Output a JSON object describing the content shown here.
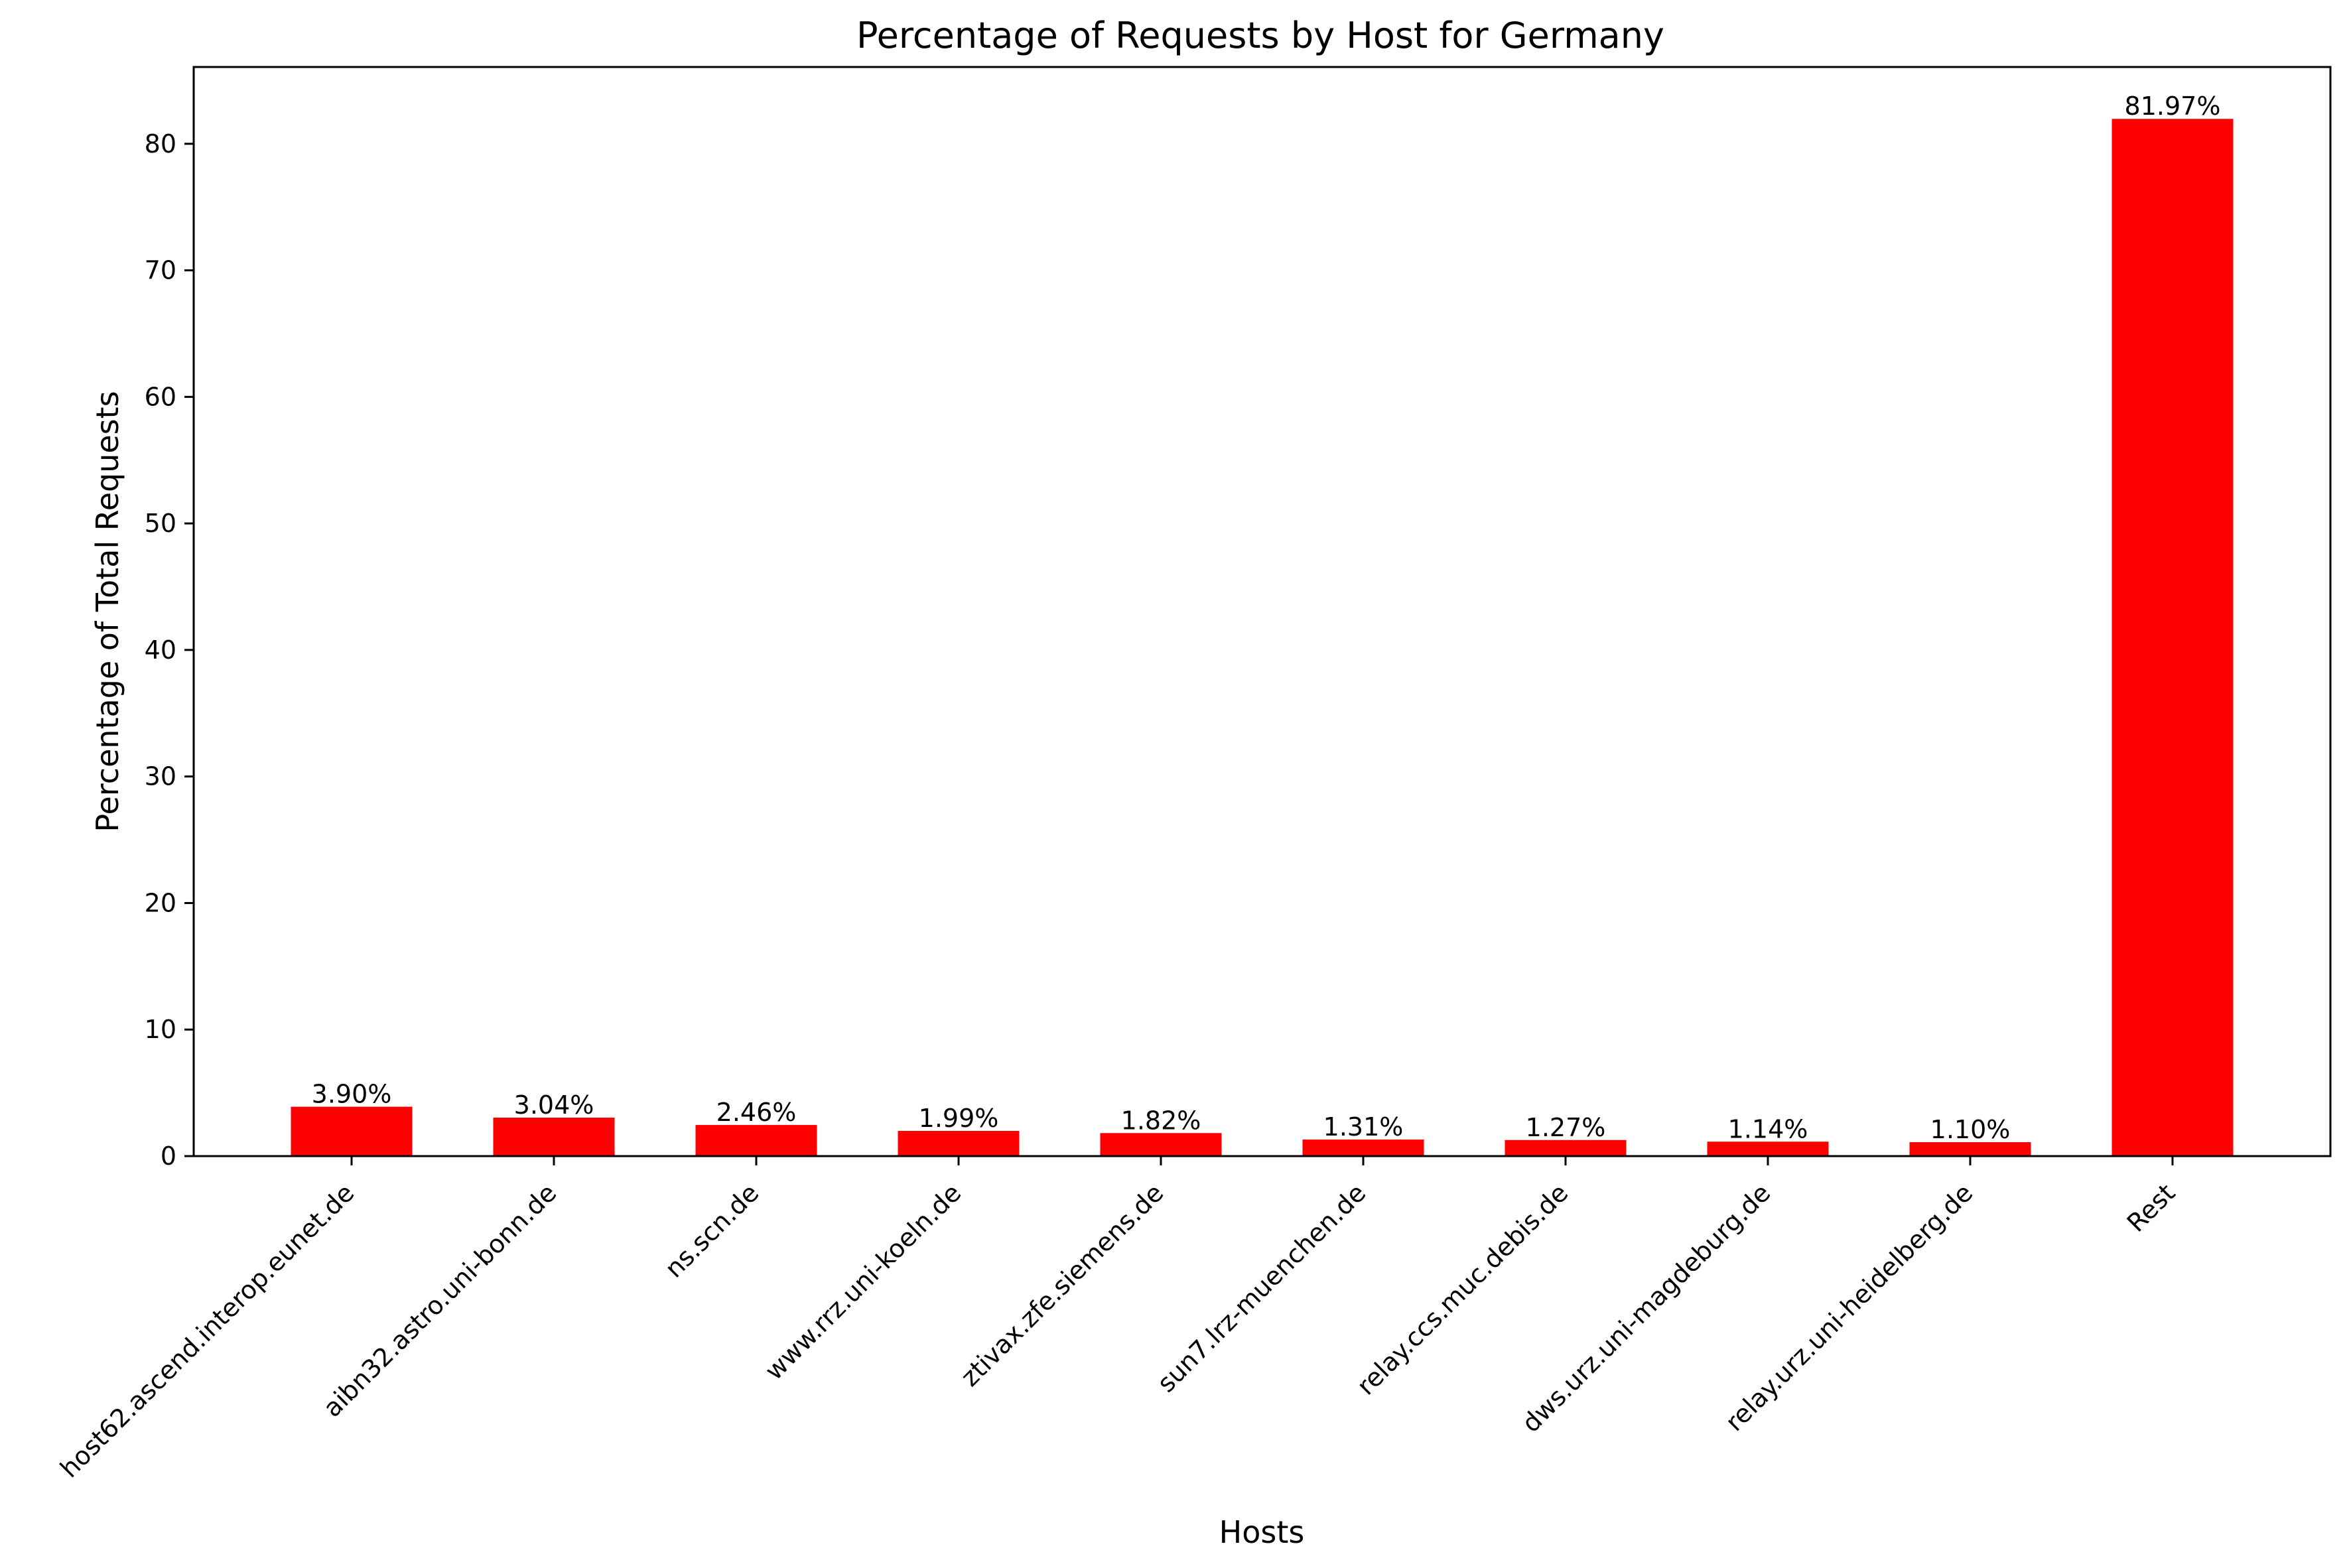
{
  "chart_data": {
    "type": "bar",
    "title": "Percentage of Requests by Host for Germany",
    "xlabel": "Hosts",
    "ylabel": "Percentage of Total Requests",
    "categories": [
      "host62.ascend.interop.eunet.de",
      "aibn32.astro.uni-bonn.de",
      "ns.scn.de",
      "www.rrz.uni-koeln.de",
      "ztivax.zfe.siemens.de",
      "sun7.lrz-muenchen.de",
      "relay.ccs.muc.debis.de",
      "dws.urz.uni-magdeburg.de",
      "relay.urz.uni-heidelberg.de",
      "Rest"
    ],
    "values": [
      3.9,
      3.04,
      2.46,
      1.99,
      1.82,
      1.31,
      1.27,
      1.14,
      1.1,
      81.97
    ],
    "data_labels": [
      "3.90%",
      "3.04%",
      "2.46%",
      "1.99%",
      "1.82%",
      "1.31%",
      "1.27%",
      "1.14%",
      "1.10%",
      "81.97%"
    ],
    "ylim": [
      0,
      86.07
    ],
    "yticks": [
      0,
      10,
      20,
      30,
      40,
      50,
      60,
      70,
      80
    ],
    "ytick_labels": [
      "0",
      "10",
      "20",
      "30",
      "40",
      "50",
      "60",
      "70",
      "80"
    ],
    "bar_color": "#ff0000",
    "grid": false,
    "legend": "none"
  }
}
